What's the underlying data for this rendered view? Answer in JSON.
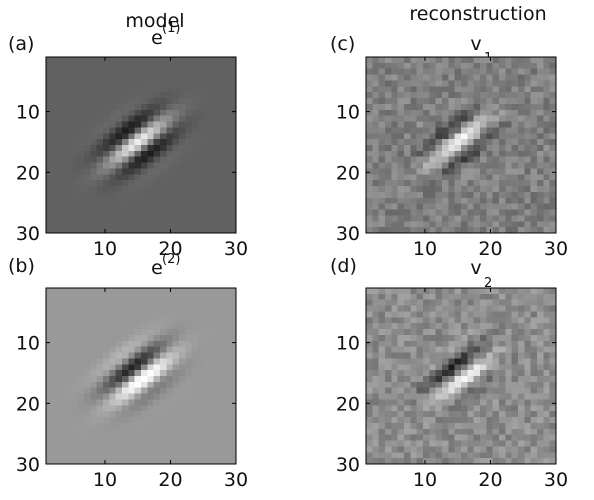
{
  "column_titles": {
    "left": "model",
    "right": "reconstruction"
  },
  "chart_data": [
    {
      "type": "heatmap",
      "panel_label": "(a)",
      "title_base": "e",
      "title_sup": "(1)",
      "title_sub": "",
      "source": "model",
      "x_lim": [
        1,
        30
      ],
      "y_lim": [
        1,
        30
      ],
      "x_ticks": [
        10,
        20,
        30
      ],
      "y_ticks": [
        10,
        20,
        30
      ],
      "colormap": "gray",
      "background": 0.38,
      "gabor": {
        "center": [
          15,
          15
        ],
        "orientation_deg": -40,
        "wavelength": 6.2,
        "sigma_major": 4.2,
        "sigma_minor": 2.4,
        "amplitude": 0.55,
        "phase": "cosine"
      },
      "noise": 0
    },
    {
      "type": "heatmap",
      "panel_label": "(b)",
      "title_base": "e",
      "title_sup": "(2)",
      "title_sub": "",
      "source": "model",
      "x_lim": [
        1,
        30
      ],
      "y_lim": [
        1,
        30
      ],
      "x_ticks": [
        10,
        20,
        30
      ],
      "y_ticks": [
        10,
        20,
        30
      ],
      "colormap": "gray",
      "background": 0.6,
      "gabor": {
        "center": [
          15,
          15
        ],
        "orientation_deg": -40,
        "wavelength": 6.2,
        "sigma_major": 4.2,
        "sigma_minor": 2.4,
        "amplitude": 0.55,
        "phase": "sine"
      },
      "noise": 0
    },
    {
      "type": "heatmap",
      "panel_label": "(c)",
      "title_base": "v",
      "title_sup": "",
      "title_sub": "1",
      "source": "reconstruction",
      "x_lim": [
        1,
        30
      ],
      "y_lim": [
        1,
        30
      ],
      "x_ticks": [
        10,
        20,
        30
      ],
      "y_ticks": [
        10,
        20,
        30
      ],
      "colormap": "gray",
      "background": 0.5,
      "gabor": {
        "center": [
          15,
          15
        ],
        "orientation_deg": -40,
        "wavelength": 6.2,
        "sigma_major": 4.2,
        "sigma_minor": 2.4,
        "amplitude": 0.45,
        "phase": "cosine"
      },
      "noise": 0.09
    },
    {
      "type": "heatmap",
      "panel_label": "(d)",
      "title_base": "v",
      "title_sup": "",
      "title_sub": "2",
      "source": "reconstruction",
      "x_lim": [
        1,
        30
      ],
      "y_lim": [
        1,
        30
      ],
      "x_ticks": [
        10,
        20,
        30
      ],
      "y_ticks": [
        10,
        20,
        30
      ],
      "colormap": "gray",
      "background": 0.55,
      "gabor": {
        "center": [
          15,
          15
        ],
        "orientation_deg": -40,
        "wavelength": 6.2,
        "sigma_major": 4.2,
        "sigma_minor": 2.4,
        "amplitude": 0.45,
        "phase": "sine"
      },
      "noise": 0.09
    }
  ]
}
